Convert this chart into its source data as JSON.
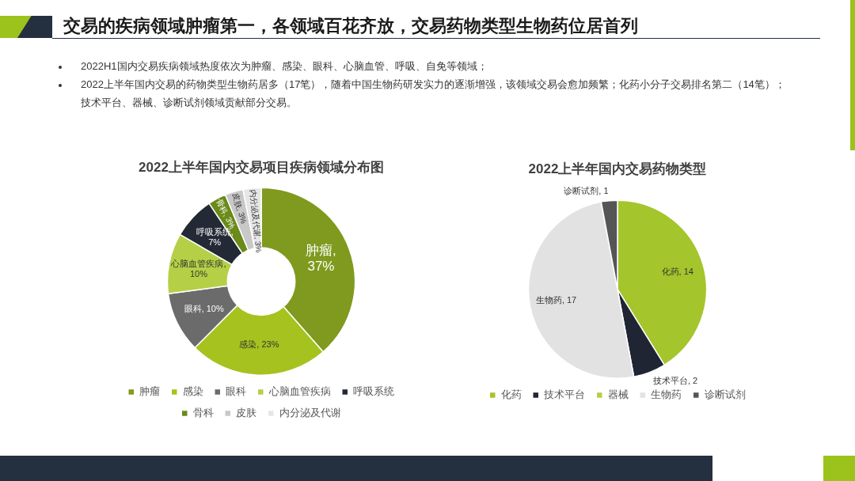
{
  "chart_data": [
    {
      "type": "other",
      "title": "交易的疾病领域肿瘤第一，各领域百花齐放，交易药物类型生物药位居首列",
      "annotations": [
        "2022H1国内交易疾病领域热度依次为肿瘤、感染、眼科、心脑血管、呼吸、自免等领域；",
        "2022上半年国内交易的药物类型生物药居多（17笔），随着中国生物药研发实力的逐渐增强，该领域交易会愈加频繁；化药小分子交易排名第二（14笔）；技术平台、器械、诊断试剂领域贡献部分交易。"
      ]
    },
    {
      "type": "donut",
      "title": "2022上半年国内交易项目疾病领域分布图",
      "categories": [
        "肿瘤",
        "感染",
        "眼科",
        "心脑血管疾病",
        "呼吸系统",
        "骨科",
        "皮肤",
        "内分泌及代谢"
      ],
      "values": [
        37,
        23,
        10,
        10,
        7,
        3,
        3,
        3
      ],
      "colors": [
        "#7f9a1e",
        "#a6c21f",
        "#6b6b6b",
        "#b5d046",
        "#232a36",
        "#6a8a1a",
        "#c8c8c8",
        "#e6e6e6"
      ],
      "value_labels": [
        "肿瘤, 37%",
        "感染, 23%",
        "眼科, 10%",
        "心脑血管疾病, 10%",
        "呼吸系统, 7%",
        "骨科, 3%",
        "皮肤, 3%",
        "内分泌及代谢, 3%"
      ],
      "legend": "bottom"
    },
    {
      "type": "pie",
      "title": "2022上半年国内交易药物类型",
      "categories": [
        "化药",
        "技术平台",
        "器械",
        "生物药",
        "诊断试剂"
      ],
      "values": [
        14,
        2,
        0,
        17,
        1
      ],
      "colors": [
        "#a4c52b",
        "#1f2533",
        "#b5d046",
        "#e2e2e2",
        "#555555"
      ],
      "value_labels": [
        "化药, 14",
        "技术平台, 2",
        null,
        "生物药, 17",
        "诊断试剂, 1"
      ],
      "legend": "bottom"
    }
  ]
}
